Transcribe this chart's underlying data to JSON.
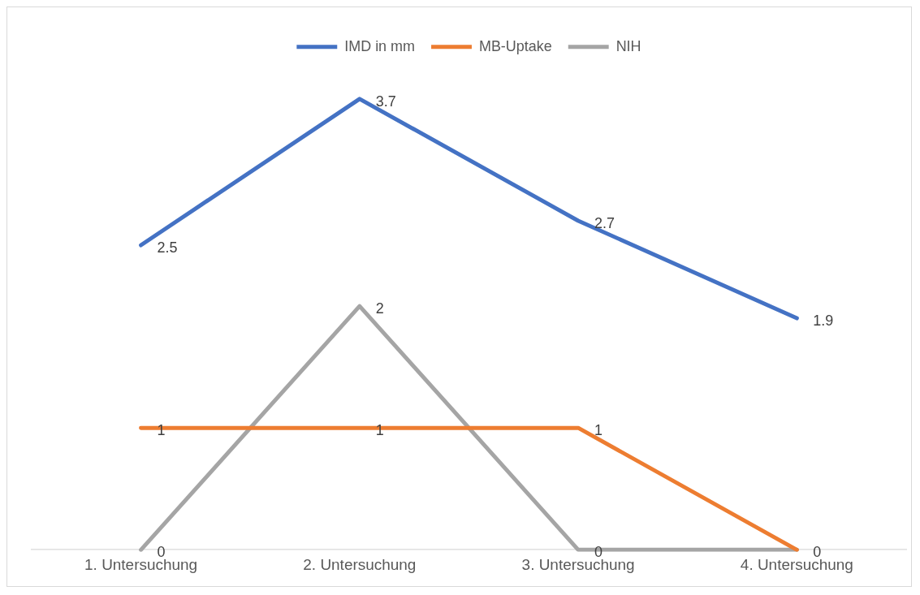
{
  "chart_data": {
    "type": "line",
    "categories": [
      "1. Untersuchung",
      "2. Untersuchung",
      "3. Untersuchung",
      "4. Untersuchung"
    ],
    "series": [
      {
        "name": "IMD in mm",
        "color": "#4472c4",
        "values": [
          2.5,
          3.7,
          2.7,
          1.9
        ],
        "value_labels": [
          "2.5",
          "3.7",
          "2.7",
          "1.9"
        ]
      },
      {
        "name": "MB-Uptake",
        "color": "#ed7d31",
        "values": [
          1,
          1,
          1,
          0
        ],
        "value_labels": [
          "1",
          "1",
          "1",
          "0"
        ]
      },
      {
        "name": "NIH",
        "color": "#a5a5a5",
        "values": [
          0,
          2,
          0,
          0
        ],
        "value_labels": [
          "0",
          "2",
          "0",
          null
        ]
      }
    ],
    "tick_labels": "x",
    "grid": false,
    "legend": "top",
    "marker": "none",
    "line_style": "solid"
  }
}
